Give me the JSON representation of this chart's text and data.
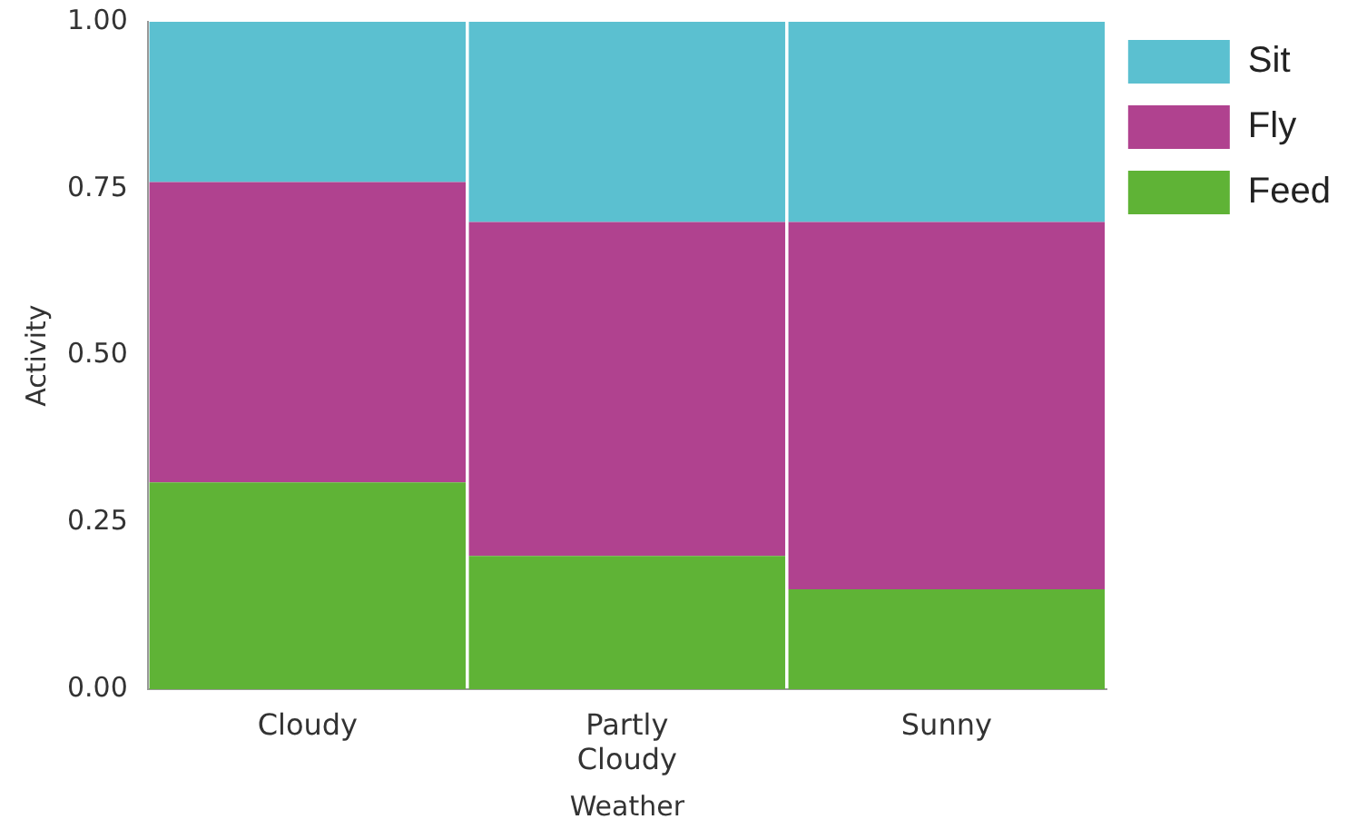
{
  "chart_data": {
    "type": "bar",
    "stacked": true,
    "xlabel": "Weather",
    "ylabel": "Activity",
    "categories": [
      "Cloudy",
      "Partly Cloudy",
      "Sunny"
    ],
    "series": [
      {
        "name": "Feed",
        "color": "#5fb336",
        "values": [
          0.31,
          0.2,
          0.15
        ]
      },
      {
        "name": "Fly",
        "color": "#b0428f",
        "values": [
          0.45,
          0.5,
          0.55
        ]
      },
      {
        "name": "Sit",
        "color": "#5bc0d0",
        "values": [
          0.24,
          0.3,
          0.3
        ]
      }
    ],
    "ylim": [
      0,
      1
    ],
    "yticks": [
      {
        "value": 0,
        "label": "0.00"
      },
      {
        "value": 0.25,
        "label": "0.25"
      },
      {
        "value": 0.5,
        "label": "0.50"
      },
      {
        "value": 0.75,
        "label": "0.75"
      },
      {
        "value": 1,
        "label": "1.00"
      }
    ],
    "grid": false,
    "legend": "right"
  }
}
